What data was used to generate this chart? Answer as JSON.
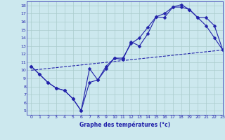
{
  "title": "Graphe des températures (°c)",
  "background_color": "#cce8ee",
  "grid_color": "#aacccc",
  "line_color": "#2222aa",
  "xlim": [
    -0.5,
    23
  ],
  "ylim": [
    4.5,
    18.5
  ],
  "yticks": [
    5,
    6,
    7,
    8,
    9,
    10,
    11,
    12,
    13,
    14,
    15,
    16,
    17,
    18
  ],
  "xticks": [
    0,
    1,
    2,
    3,
    4,
    5,
    6,
    7,
    8,
    9,
    10,
    11,
    12,
    13,
    14,
    15,
    16,
    17,
    18,
    19,
    20,
    21,
    22,
    23
  ],
  "line1_x": [
    0,
    1,
    2,
    3,
    4,
    5,
    6,
    7,
    8,
    9,
    10,
    11,
    12,
    13,
    14,
    15,
    16,
    17,
    18,
    19,
    20,
    21,
    22,
    23
  ],
  "line1_y": [
    10.5,
    9.5,
    8.5,
    7.8,
    7.5,
    6.5,
    5.0,
    8.5,
    8.8,
    10.2,
    11.5,
    11.3,
    13.5,
    13.0,
    14.5,
    16.6,
    16.5,
    17.8,
    18.1,
    17.5,
    16.5,
    15.5,
    14.0,
    12.5
  ],
  "line2_x": [
    0,
    1,
    2,
    3,
    4,
    5,
    6,
    7,
    8,
    9,
    10,
    11,
    12,
    13,
    14,
    15,
    16,
    17,
    18,
    19,
    20,
    21,
    22,
    23
  ],
  "line2_y": [
    10.5,
    9.5,
    8.5,
    7.8,
    7.5,
    6.5,
    5.0,
    10.2,
    8.8,
    10.5,
    11.5,
    11.5,
    13.3,
    14.0,
    15.3,
    16.6,
    17.0,
    17.8,
    17.8,
    17.5,
    16.5,
    16.5,
    15.5,
    12.5
  ],
  "line3_x": [
    0,
    23
  ],
  "line3_y": [
    10.0,
    12.5
  ],
  "marker": "D",
  "markersize": 2.5,
  "linewidth": 0.8
}
